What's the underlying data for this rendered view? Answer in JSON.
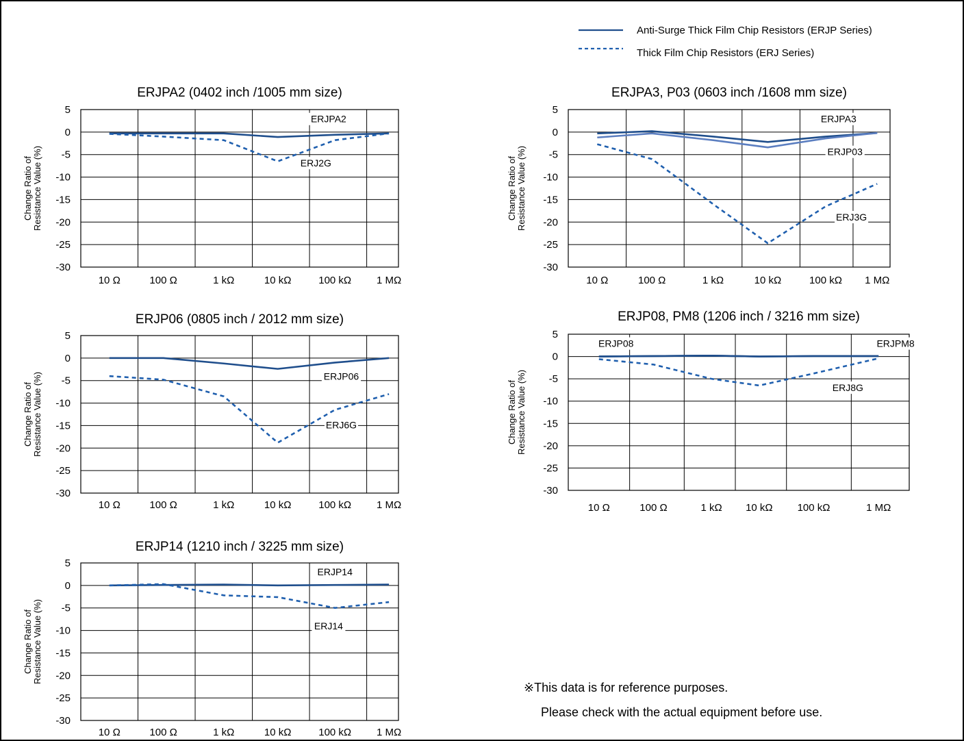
{
  "legend": [
    {
      "label": "Anti-Surge Thick Film Chip Resistors (ERJP Series)",
      "style": "solid"
    },
    {
      "label": "Thick Film Chip Resistors (ERJ Series)",
      "style": "dashed"
    }
  ],
  "colors": {
    "anti_surge": "#1f4e8c",
    "anti_surge_light": "#5b7ec0",
    "thick_film": "#1f5fae",
    "grid": "#000000"
  },
  "note": {
    "line1": "※This data is for reference purposes.",
    "line2": "Please check with the actual equipment before use."
  },
  "chart_data": [
    {
      "type": "line",
      "title": "ERJPA2 (0402 inch /1005 mm size)",
      "ylabel": [
        "Change Ratio of",
        "Resistance Value (%)"
      ],
      "ylim": [
        -30,
        5
      ],
      "yticks": [
        "5",
        "0",
        "-5",
        "-10",
        "-15",
        "-20",
        "-25",
        "-30"
      ],
      "x": [
        "10 Ω",
        "100 Ω",
        "1 kΩ",
        "10 kΩ",
        "100 kΩ",
        "1 MΩ"
      ],
      "series": [
        {
          "name": "ERJPA2",
          "style": "solid",
          "values": [
            -0.3,
            -0.3,
            -0.3,
            -1.1,
            -0.6,
            -0.3
          ]
        },
        {
          "name": "ERJ2G",
          "style": "dashed",
          "values": [
            -0.4,
            -1.0,
            -1.8,
            -6.5,
            -1.8,
            -0.3
          ]
        }
      ]
    },
    {
      "type": "line",
      "title": "ERJPA3, P03 (0603 inch /1608 mm size)",
      "ylabel": [
        "Change Ratio of",
        "Resistance Value (%)"
      ],
      "ylim": [
        -30,
        5
      ],
      "yticks": [
        "5",
        "0",
        "-5",
        "-10",
        "-15",
        "-20",
        "-25",
        "-30"
      ],
      "x": [
        "10 Ω",
        "100 Ω",
        "1 kΩ",
        "10 kΩ",
        "100 kΩ",
        "1 MΩ"
      ],
      "series": [
        {
          "name": "ERJPA3",
          "style": "solid",
          "values": [
            -0.3,
            0.2,
            -1.0,
            -2.2,
            -1.0,
            -0.2
          ]
        },
        {
          "name": "ERJP03",
          "style": "solid-light",
          "values": [
            -1.2,
            -0.3,
            -1.8,
            -3.4,
            -1.4,
            -0.2
          ]
        },
        {
          "name": "ERJ3G",
          "style": "dashed",
          "values": [
            -2.7,
            -6.0,
            -16.0,
            -24.7,
            -16.5,
            -11.5
          ]
        }
      ]
    },
    {
      "type": "line",
      "title": "ERJP06 (0805 inch / 2012 mm size)",
      "ylabel": [
        "Change Ratio of",
        "Resistance Value (%)"
      ],
      "ylim": [
        -30,
        5
      ],
      "yticks": [
        "5",
        "0",
        "-5",
        "-10",
        "-15",
        "-20",
        "-25",
        "-30"
      ],
      "x": [
        "10 Ω",
        "100 Ω",
        "1 kΩ",
        "10 kΩ",
        "100 kΩ",
        "1 MΩ"
      ],
      "series": [
        {
          "name": "ERJP06",
          "style": "solid",
          "values": [
            0.0,
            0.0,
            -1.2,
            -2.4,
            -1.0,
            0.0
          ]
        },
        {
          "name": "ERJ6G",
          "style": "dashed",
          "values": [
            -4.0,
            -4.8,
            -8.5,
            -18.8,
            -11.5,
            -8.0
          ]
        }
      ]
    },
    {
      "type": "line",
      "title": "ERJP08, PM8 (1206 inch / 3216 mm size)",
      "ylabel": [
        "Change Ratio of",
        "Resistance Value (%)"
      ],
      "ylim": [
        -30,
        5
      ],
      "yticks": [
        "5",
        "0",
        "-5",
        "-10",
        "-15",
        "-20",
        "-25",
        "-30"
      ],
      "x": [
        "10 Ω",
        "100 Ω",
        "1 kΩ",
        "10 kΩ",
        "100 kΩ",
        "1 MΩ"
      ],
      "series": [
        {
          "name": "ERJP08",
          "style": "solid",
          "values": [
            0.0,
            0.1,
            0.2,
            0.0,
            0.1,
            0.1
          ]
        },
        {
          "name": "ERJPM8",
          "style": "solid",
          "values": [
            0.0,
            0.1,
            0.2,
            0.0,
            0.1,
            0.1
          ]
        },
        {
          "name": "ERJ8G",
          "style": "dashed",
          "values": [
            -0.6,
            -1.8,
            -5.0,
            -6.5,
            -3.8,
            -0.4
          ]
        }
      ]
    },
    {
      "type": "line",
      "title": "ERJP14 (1210 inch / 3225 mm size)",
      "ylabel": [
        "Change Ratio of",
        "Resistance Value (%)"
      ],
      "ylim": [
        -30,
        5
      ],
      "yticks": [
        "5",
        "0",
        "-5",
        "-10",
        "-15",
        "-20",
        "-25",
        "-30"
      ],
      "x": [
        "10 Ω",
        "100 Ω",
        "1 kΩ",
        "10 kΩ",
        "100 kΩ",
        "1 MΩ"
      ],
      "series": [
        {
          "name": "ERJP14",
          "style": "solid",
          "values": [
            0.0,
            0.1,
            0.2,
            0.0,
            0.1,
            0.2
          ]
        },
        {
          "name": "ERJ14",
          "style": "dashed",
          "values": [
            0.0,
            0.3,
            -2.2,
            -2.6,
            -5.0,
            -3.7
          ]
        }
      ]
    }
  ]
}
